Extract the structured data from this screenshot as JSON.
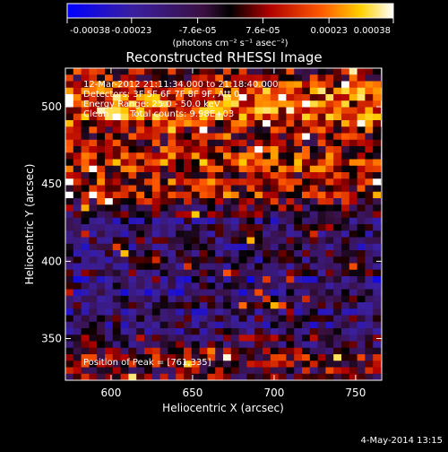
{
  "chart_data": {
    "type": "heatmap",
    "title": "Reconstructed RHESSI Image",
    "xlabel": "Heliocentric X (arcsec)",
    "ylabel": "Heliocentric Y (arcsec)",
    "xlim": [
      572,
      766
    ],
    "ylim": [
      323,
      525
    ],
    "x_ticks": [
      600,
      650,
      700,
      750
    ],
    "y_ticks": [
      350,
      400,
      450,
      500
    ],
    "colorbar": {
      "label": "(photons cm⁻² s⁻¹ asec⁻²)",
      "ticks": [
        "-0.00038",
        "-0.00023",
        "-7.6e-05",
        "7.6e-05",
        "0.00023",
        "0.00038"
      ],
      "range": [
        -0.00038,
        0.00038
      ]
    },
    "annotations": [
      "12-Mar-2012 21:11:34.000 to 21:18:40.000",
      "Detectors: 3F 5F 6F 7F 8F 9F, Att 0",
      "Energy Range: 25.0 - 50.0 keV",
      "Clean",
      "Total counts: 9.98E+03"
    ],
    "peak_label": "Position of Peak = [761,335]",
    "peak": [
      761,
      335
    ],
    "footer_date": "4-May-2014 13:15",
    "grid": "off",
    "rows_description": "intensity per y-band (fraction of colorbar range, 0=low/blue, 1=high/white)",
    "band_profile": [
      {
        "y": 520,
        "level": 0.55
      },
      {
        "y": 510,
        "level": 0.65
      },
      {
        "y": 500,
        "level": 0.72
      },
      {
        "y": 490,
        "level": 0.68
      },
      {
        "y": 480,
        "level": 0.6
      },
      {
        "y": 470,
        "level": 0.66
      },
      {
        "y": 460,
        "level": 0.7
      },
      {
        "y": 450,
        "level": 0.62
      },
      {
        "y": 440,
        "level": 0.52
      },
      {
        "y": 430,
        "level": 0.4
      },
      {
        "y": 420,
        "level": 0.36
      },
      {
        "y": 410,
        "level": 0.38
      },
      {
        "y": 400,
        "level": 0.42
      },
      {
        "y": 390,
        "level": 0.3
      },
      {
        "y": 380,
        "level": 0.28
      },
      {
        "y": 370,
        "level": 0.34
      },
      {
        "y": 360,
        "level": 0.38
      },
      {
        "y": 350,
        "level": 0.4
      },
      {
        "y": 340,
        "level": 0.46
      },
      {
        "y": 330,
        "level": 0.55
      }
    ]
  }
}
